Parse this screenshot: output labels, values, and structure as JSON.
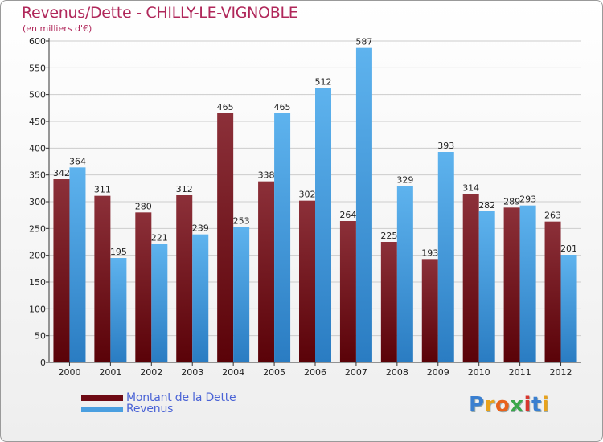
{
  "title": "Revenus/Dette - CHILLY-LE-VIGNOBLE",
  "subtitle": "(en milliers d'€)",
  "legend": [
    {
      "label": "Montant de la Dette",
      "color": "#6e0a14"
    },
    {
      "label": "Revenus",
      "color": "#4a9fe0"
    }
  ],
  "logo_text": "Proxiti",
  "colors": {
    "debt_top": "#8c3039",
    "debt_bottom": "#5a0208",
    "rev_top": "#5eb3ee",
    "rev_bottom": "#2a7cc2",
    "title": "#b0275a"
  },
  "chart_data": {
    "type": "bar",
    "title": "Revenus/Dette - CHILLY-LE-VIGNOBLE",
    "ylabel": "(en milliers d'€)",
    "xlabel": "",
    "ylim": [
      0,
      600
    ],
    "yticks": [
      0,
      50,
      100,
      150,
      200,
      250,
      300,
      350,
      400,
      450,
      500,
      550,
      600
    ],
    "grid": true,
    "categories": [
      "2000",
      "2001",
      "2002",
      "2003",
      "2004",
      "2005",
      "2006",
      "2007",
      "2008",
      "2009",
      "2010",
      "2011",
      "2012"
    ],
    "series": [
      {
        "name": "Montant de la Dette",
        "values": [
          342,
          311,
          280,
          312,
          465,
          338,
          302,
          264,
          225,
          193,
          314,
          289,
          263
        ]
      },
      {
        "name": "Revenus",
        "values": [
          364,
          195,
          221,
          239,
          253,
          465,
          512,
          587,
          329,
          393,
          282,
          293,
          201
        ]
      }
    ]
  }
}
